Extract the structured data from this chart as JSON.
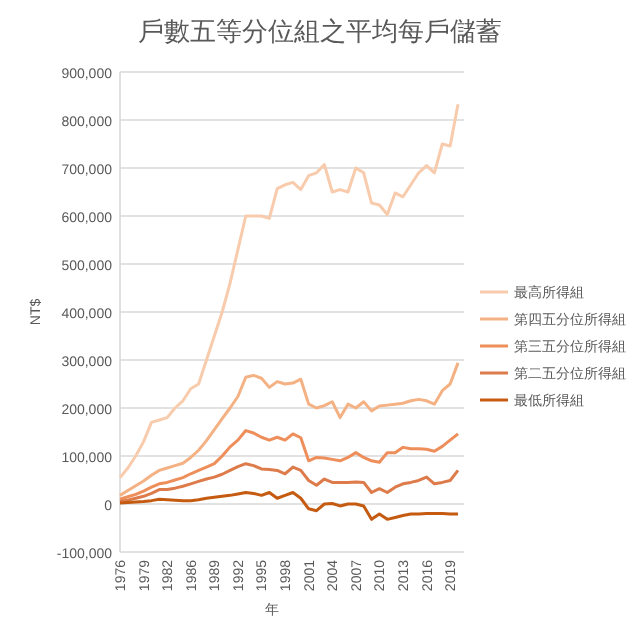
{
  "chart_data": {
    "type": "line",
    "title": "戶數五等分位組之平均每戶儲蓄",
    "xlabel": "年",
    "ylabel": "NT$",
    "categories": [
      "1976",
      null,
      null,
      "1979",
      null,
      null,
      "1982",
      null,
      null,
      "1986",
      null,
      null,
      "1989",
      null,
      null,
      "1992",
      null,
      null,
      "1995",
      null,
      null,
      "1998",
      null,
      null,
      "2001",
      null,
      null,
      "2004",
      null,
      null,
      "2007",
      null,
      null,
      "2010",
      null,
      null,
      "2013",
      null,
      null,
      "2016",
      null,
      null,
      "2019",
      null
    ],
    "ylim": [
      -100000,
      900000
    ],
    "yticks": [
      {
        "value": -100000,
        "label": "-100,000"
      },
      {
        "value": 0,
        "label": "0"
      },
      {
        "value": 100000,
        "label": "100,000"
      },
      {
        "value": 200000,
        "label": "200,000"
      },
      {
        "value": 300000,
        "label": "300,000"
      },
      {
        "value": 400000,
        "label": "400,000"
      },
      {
        "value": 500000,
        "label": "500,000"
      },
      {
        "value": 600000,
        "label": "600,000"
      },
      {
        "value": 700000,
        "label": "700,000"
      },
      {
        "value": 800000,
        "label": "800,000"
      },
      {
        "value": 900000,
        "label": "900,000"
      }
    ],
    "grid": "y",
    "legend": "right",
    "marker": "none",
    "line_style": "solid",
    "series": [
      {
        "name": "最高所得組",
        "color": "#f8cbad",
        "values": [
          55000,
          75000,
          100000,
          130000,
          170000,
          175000,
          180000,
          200000,
          215000,
          240000,
          250000,
          300000,
          350000,
          400000,
          460000,
          530000,
          600000,
          600000,
          600000,
          595000,
          657000,
          665000,
          670000,
          655000,
          684000,
          690000,
          707000,
          650000,
          655000,
          650000,
          700000,
          690000,
          627000,
          623000,
          603000,
          648000,
          640000,
          665000,
          690000,
          705000,
          690000,
          750000,
          746000,
          833000
        ]
      },
      {
        "name": "第四五分位所得組",
        "color": "#f4b183",
        "values": [
          18000,
          28000,
          38000,
          48000,
          60000,
          70000,
          75000,
          80000,
          85000,
          97000,
          112000,
          132000,
          155000,
          178000,
          200000,
          224000,
          264000,
          268000,
          262000,
          243000,
          255000,
          250000,
          252000,
          260000,
          208000,
          200000,
          205000,
          213000,
          180000,
          208000,
          200000,
          213000,
          194000,
          204000,
          206000,
          208000,
          210000,
          215000,
          218000,
          215000,
          208000,
          236000,
          250000,
          294000
        ]
      },
      {
        "name": "第三五分位所得組",
        "color": "#ee8e5a",
        "values": [
          10000,
          15000,
          20000,
          27000,
          35000,
          42000,
          45000,
          50000,
          55000,
          63000,
          70000,
          77000,
          84000,
          100000,
          119000,
          133000,
          153000,
          148000,
          139000,
          133000,
          139000,
          133000,
          146000,
          138000,
          90000,
          97000,
          96000,
          93000,
          90000,
          97000,
          107000,
          97000,
          90000,
          87000,
          107000,
          107000,
          118000,
          115000,
          115000,
          114000,
          110000,
          120000,
          133000,
          146000
        ]
      },
      {
        "name": "第二五分位所得組",
        "color": "#dd7b4a",
        "values": [
          5000,
          8000,
          12000,
          16000,
          22000,
          30000,
          30000,
          33000,
          37000,
          42000,
          47000,
          52000,
          56000,
          62000,
          70000,
          78000,
          84000,
          80000,
          73000,
          72000,
          70000,
          63000,
          77000,
          70000,
          49000,
          39000,
          52000,
          45000,
          45000,
          45000,
          46000,
          45000,
          24000,
          32000,
          24000,
          35000,
          42000,
          45000,
          49000,
          56000,
          42000,
          45000,
          49000,
          70000
        ]
      },
      {
        "name": "最低所得組",
        "color": "#c55a11",
        "values": [
          2000,
          3000,
          4000,
          5000,
          7000,
          10000,
          9000,
          8000,
          7000,
          7000,
          9000,
          12000,
          14000,
          16000,
          18000,
          21000,
          24000,
          22000,
          18000,
          24000,
          12000,
          18000,
          24000,
          12000,
          -10000,
          -14000,
          0,
          1000,
          -4000,
          0,
          0,
          -4000,
          -32000,
          -21000,
          -32000,
          -28000,
          -24000,
          -21000,
          -21000,
          -20000,
          -20000,
          -20000,
          -21000,
          -21000
        ]
      }
    ]
  }
}
